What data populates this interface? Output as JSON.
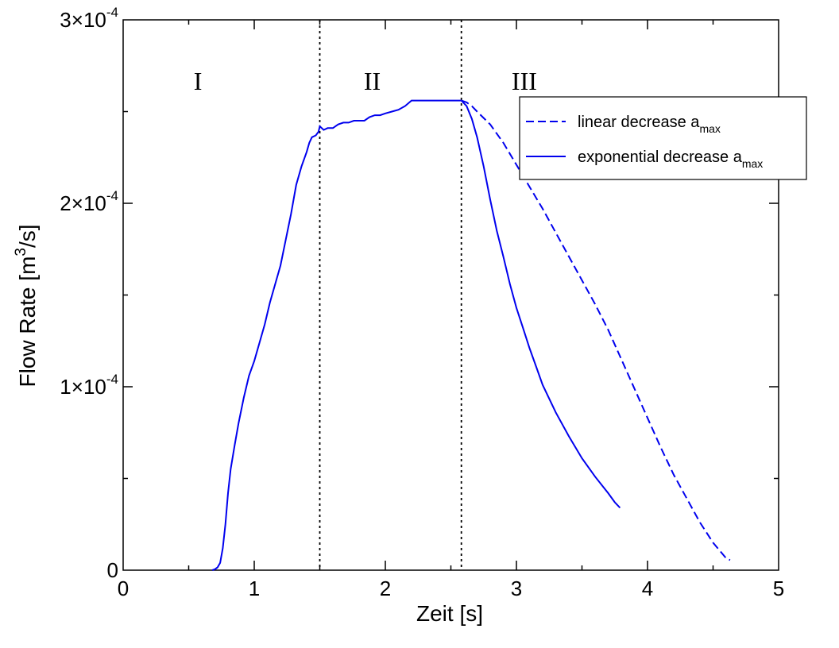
{
  "chart_data": {
    "type": "line",
    "title": "",
    "xlabel": "Zeit [s]",
    "ylabel": {
      "prefix": "Flow Rate [m",
      "sup": "3",
      "suffix": "/s]"
    },
    "xlim": [
      0,
      5
    ],
    "ylim": [
      0,
      0.0003
    ],
    "grid": false,
    "legend_position": "top-right",
    "x_ticks": [
      {
        "value": 0,
        "label": "0"
      },
      {
        "value": 1,
        "label": "1"
      },
      {
        "value": 2,
        "label": "2"
      },
      {
        "value": 3,
        "label": "3"
      },
      {
        "value": 4,
        "label": "4"
      },
      {
        "value": 5,
        "label": "5"
      }
    ],
    "y_ticks": [
      {
        "value": 0,
        "mantissa": "0",
        "exponent": ""
      },
      {
        "value": 0.0001,
        "mantissa": "1×10",
        "exponent": "-4"
      },
      {
        "value": 0.0002,
        "mantissa": "2×10",
        "exponent": "-4"
      },
      {
        "value": 0.0003,
        "mantissa": "3×10",
        "exponent": "-4"
      }
    ],
    "vertical_lines": [
      {
        "x": 1.5,
        "style": "dotted"
      },
      {
        "x": 2.58,
        "style": "dotted"
      }
    ],
    "annotations": [
      {
        "text": "I",
        "x": 0.57,
        "y": 0.000268
      },
      {
        "text": "II",
        "x": 1.9,
        "y": 0.000268
      },
      {
        "text": "III",
        "x": 3.06,
        "y": 0.000268
      }
    ],
    "shared_series": {
      "name": "",
      "color": "#0000ee",
      "dash": "solid",
      "points": [
        [
          0.68,
          0.0
        ],
        [
          0.7,
          5e-07
        ],
        [
          0.72,
          1.5e-06
        ],
        [
          0.74,
          4e-06
        ],
        [
          0.76,
          1.2e-05
        ],
        [
          0.78,
          2.5e-05
        ],
        [
          0.8,
          4.2e-05
        ],
        [
          0.82,
          5.5e-05
        ],
        [
          0.85,
          6.8e-05
        ],
        [
          0.88,
          8e-05
        ],
        [
          0.92,
          9.4e-05
        ],
        [
          0.96,
          0.000106
        ],
        [
          1.0,
          0.000114
        ],
        [
          1.04,
          0.000124
        ],
        [
          1.08,
          0.000134
        ],
        [
          1.12,
          0.000146
        ],
        [
          1.16,
          0.000156
        ],
        [
          1.2,
          0.000166
        ],
        [
          1.24,
          0.00018
        ],
        [
          1.28,
          0.000194
        ],
        [
          1.32,
          0.00021
        ],
        [
          1.36,
          0.00022
        ],
        [
          1.4,
          0.000228
        ],
        [
          1.42,
          0.000233
        ],
        [
          1.44,
          0.000236
        ],
        [
          1.47,
          0.000237
        ],
        [
          1.49,
          0.000239
        ],
        [
          1.5,
          0.000242
        ],
        [
          1.53,
          0.00024
        ],
        [
          1.56,
          0.000241
        ],
        [
          1.6,
          0.000241
        ],
        [
          1.64,
          0.000243
        ],
        [
          1.68,
          0.000244
        ],
        [
          1.72,
          0.000244
        ],
        [
          1.76,
          0.000245
        ],
        [
          1.8,
          0.000245
        ],
        [
          1.84,
          0.000245
        ],
        [
          1.88,
          0.000247
        ],
        [
          1.92,
          0.000248
        ],
        [
          1.96,
          0.000248
        ],
        [
          2.0,
          0.000249
        ],
        [
          2.05,
          0.00025
        ],
        [
          2.1,
          0.000251
        ],
        [
          2.15,
          0.000253
        ],
        [
          2.2,
          0.000256
        ],
        [
          2.3,
          0.000256
        ],
        [
          2.4,
          0.000256
        ],
        [
          2.5,
          0.000256
        ],
        [
          2.55,
          0.000256
        ],
        [
          2.58,
          0.000256
        ]
      ]
    },
    "series": [
      {
        "name": "linear decrease a",
        "name_sub": "max",
        "color": "#0000ee",
        "dash": "dashed",
        "points": [
          [
            2.58,
            0.000256
          ],
          [
            2.62,
            0.000255
          ],
          [
            2.66,
            0.000253
          ],
          [
            2.7,
            0.00025
          ],
          [
            2.8,
            0.000243
          ],
          [
            2.9,
            0.000233
          ],
          [
            3.0,
            0.000221
          ],
          [
            3.1,
            0.000209
          ],
          [
            3.2,
            0.000197
          ],
          [
            3.3,
            0.000184
          ],
          [
            3.4,
            0.000171
          ],
          [
            3.5,
            0.000158
          ],
          [
            3.6,
            0.000145
          ],
          [
            3.7,
            0.000131
          ],
          [
            3.8,
            0.000115
          ],
          [
            3.9,
            9.9e-05
          ],
          [
            4.0,
            8.3e-05
          ],
          [
            4.1,
            6.7e-05
          ],
          [
            4.2,
            5.2e-05
          ],
          [
            4.3,
            3.9e-05
          ],
          [
            4.4,
            2.6e-05
          ],
          [
            4.5,
            1.5e-05
          ],
          [
            4.6,
            6.5e-06
          ],
          [
            4.63,
            5.5e-06
          ]
        ]
      },
      {
        "name": "exponential decrease a",
        "name_sub": "max",
        "color": "#0000ee",
        "dash": "solid",
        "points": [
          [
            2.58,
            0.000256
          ],
          [
            2.62,
            0.000253
          ],
          [
            2.66,
            0.000246
          ],
          [
            2.7,
            0.000236
          ],
          [
            2.75,
            0.00022
          ],
          [
            2.8,
            0.000202
          ],
          [
            2.85,
            0.000185
          ],
          [
            2.9,
            0.000171
          ],
          [
            2.95,
            0.000156
          ],
          [
            3.0,
            0.000143
          ],
          [
            3.05,
            0.000132
          ],
          [
            3.1,
            0.000121
          ],
          [
            3.15,
            0.000111
          ],
          [
            3.2,
            0.000101
          ],
          [
            3.3,
            8.6e-05
          ],
          [
            3.4,
            7.3e-05
          ],
          [
            3.5,
            6.1e-05
          ],
          [
            3.6,
            5.1e-05
          ],
          [
            3.7,
            4.2e-05
          ],
          [
            3.75,
            3.7e-05
          ],
          [
            3.79,
            3.4e-05
          ]
        ]
      }
    ]
  }
}
